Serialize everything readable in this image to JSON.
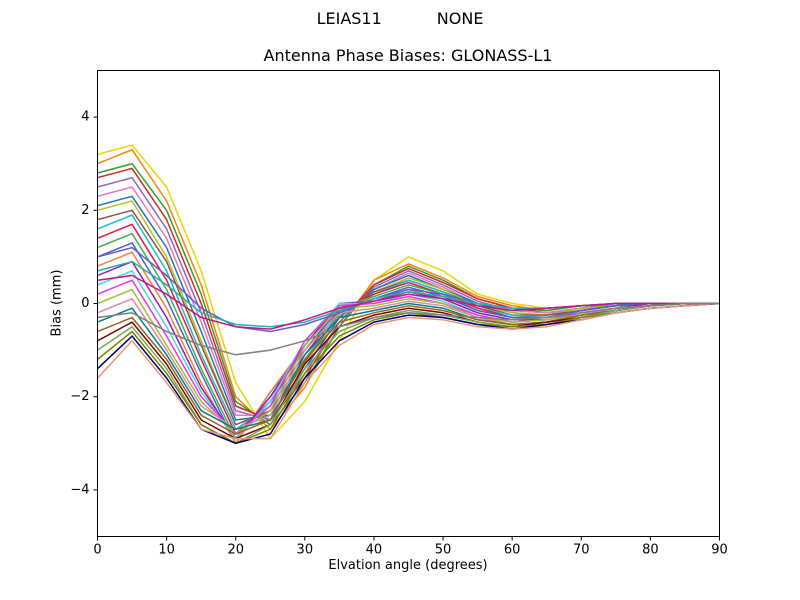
{
  "chart_data": {
    "type": "line",
    "suptitle_left": "LEIAS11",
    "suptitle_right": "NONE",
    "title": "Antenna Phase Biases: GLONASS-L1",
    "xlabel": "Elvation angle (degrees)",
    "ylabel": "Bias (mm)",
    "xlim": [
      0,
      90
    ],
    "ylim": [
      -5,
      5
    ],
    "xticks": [
      0,
      10,
      20,
      30,
      40,
      50,
      60,
      70,
      80,
      90
    ],
    "yticks": [
      -4,
      -2,
      0,
      2,
      4
    ],
    "grid": false,
    "legend": "none",
    "x": [
      0,
      5,
      10,
      15,
      20,
      25,
      30,
      35,
      40,
      45,
      50,
      55,
      60,
      65,
      70,
      75,
      80,
      85,
      90
    ],
    "series": [
      {
        "color": "#e6d800",
        "values": [
          3.2,
          3.4,
          2.5,
          0.7,
          -1.7,
          -2.9,
          -2.1,
          -0.8,
          0.5,
          1.0,
          0.7,
          0.2,
          0.0,
          -0.1,
          -0.05,
          0,
          0,
          0,
          0
        ]
      },
      {
        "color": "#ff7f0e",
        "values": [
          3.0,
          3.3,
          2.2,
          0.4,
          -2.0,
          -2.7,
          -1.8,
          -0.5,
          0.5,
          0.85,
          0.55,
          0.15,
          -0.05,
          -0.15,
          -0.05,
          0,
          0,
          0,
          0
        ]
      },
      {
        "color": "#2ca02c",
        "values": [
          2.8,
          3.0,
          2.0,
          0.2,
          -2.1,
          -2.6,
          -1.7,
          -0.5,
          0.4,
          0.8,
          0.5,
          0.1,
          -0.1,
          -0.15,
          -0.05,
          0,
          0,
          0,
          0
        ]
      },
      {
        "color": "#d62728",
        "values": [
          2.7,
          2.9,
          1.8,
          0.0,
          -2.2,
          -2.5,
          -1.6,
          -0.4,
          0.4,
          0.75,
          0.45,
          0.1,
          -0.1,
          -0.2,
          -0.1,
          0,
          0,
          0,
          0
        ]
      },
      {
        "color": "#9467bd",
        "values": [
          2.5,
          2.7,
          1.6,
          -0.2,
          -2.3,
          -2.5,
          -1.5,
          -0.4,
          0.35,
          0.7,
          0.4,
          0.05,
          -0.15,
          -0.2,
          -0.1,
          0,
          0,
          0,
          0
        ]
      },
      {
        "color": "#e377c2",
        "values": [
          2.3,
          2.5,
          1.4,
          -0.4,
          -2.4,
          -2.4,
          -1.4,
          -0.3,
          0.3,
          0.65,
          0.35,
          0.0,
          -0.15,
          -0.2,
          -0.1,
          -0.05,
          0,
          0,
          0
        ]
      },
      {
        "color": "#1f77b4",
        "values": [
          2.1,
          2.3,
          1.2,
          -0.6,
          -2.5,
          -2.4,
          -1.4,
          -0.3,
          0.3,
          0.6,
          0.3,
          0.0,
          -0.2,
          -0.25,
          -0.1,
          -0.05,
          0,
          0,
          0
        ]
      },
      {
        "color": "#bcbd22",
        "values": [
          2.0,
          2.2,
          1.0,
          -0.8,
          -2.6,
          -2.3,
          -1.3,
          -0.25,
          0.25,
          0.55,
          0.3,
          -0.05,
          -0.2,
          -0.25,
          -0.1,
          -0.05,
          0,
          0,
          0
        ]
      },
      {
        "color": "#8c564b",
        "values": [
          1.8,
          2.0,
          0.9,
          -0.9,
          -2.6,
          -2.3,
          -1.25,
          -0.2,
          0.25,
          0.5,
          0.25,
          -0.05,
          -0.25,
          -0.25,
          -0.15,
          -0.05,
          0,
          0,
          0
        ]
      },
      {
        "color": "#17becf",
        "values": [
          1.6,
          1.9,
          0.7,
          -1.1,
          -2.7,
          -2.2,
          -1.2,
          -0.2,
          0.2,
          0.5,
          0.25,
          -0.1,
          -0.25,
          -0.3,
          -0.15,
          -0.05,
          0,
          0,
          0
        ]
      },
      {
        "color": "#e6194b",
        "values": [
          1.4,
          1.7,
          0.5,
          -1.2,
          -2.8,
          -2.1,
          -1.1,
          -0.15,
          0.2,
          0.45,
          0.2,
          -0.1,
          -0.3,
          -0.3,
          -0.15,
          -0.05,
          0,
          0,
          0
        ]
      },
      {
        "color": "#3cb44b",
        "values": [
          1.2,
          1.5,
          0.3,
          -1.4,
          -2.9,
          -2.0,
          -1.0,
          -0.1,
          0.15,
          0.4,
          0.2,
          -0.15,
          -0.3,
          -0.3,
          -0.15,
          -0.05,
          0,
          0,
          0
        ]
      },
      {
        "color": "#4363d8",
        "values": [
          1.0,
          1.3,
          0.1,
          -1.5,
          -3.0,
          -1.9,
          -1.0,
          -0.1,
          0.1,
          0.35,
          0.15,
          -0.15,
          -0.3,
          -0.3,
          -0.15,
          -0.05,
          0,
          0,
          0
        ]
      },
      {
        "color": "#f58231",
        "values": [
          0.8,
          1.1,
          -0.1,
          -1.7,
          -3.0,
          -1.9,
          -0.9,
          -0.05,
          0.1,
          0.3,
          0.1,
          -0.2,
          -0.35,
          -0.3,
          -0.2,
          -0.1,
          0,
          0,
          0
        ]
      },
      {
        "color": "#911eb4",
        "values": [
          0.6,
          0.9,
          -0.3,
          -1.8,
          -2.9,
          -2.0,
          -0.9,
          0.0,
          0.05,
          0.25,
          0.1,
          -0.2,
          -0.35,
          -0.35,
          -0.2,
          -0.1,
          0,
          0,
          0
        ]
      },
      {
        "color": "#46d4f0",
        "values": [
          0.4,
          0.7,
          -0.5,
          -1.9,
          -2.9,
          -2.1,
          -0.8,
          0.0,
          0.0,
          0.2,
          0.05,
          -0.25,
          -0.4,
          -0.35,
          -0.2,
          -0.1,
          -0.05,
          0,
          0
        ]
      },
      {
        "color": "#f032e6",
        "values": [
          0.2,
          0.5,
          -0.7,
          -2.0,
          -2.8,
          -2.2,
          -0.8,
          -0.05,
          0.0,
          0.15,
          0.0,
          -0.25,
          -0.4,
          -0.35,
          -0.2,
          -0.1,
          -0.05,
          0,
          0
        ]
      },
      {
        "color": "#9fbf30",
        "values": [
          0.0,
          0.3,
          -0.9,
          -2.1,
          -2.8,
          -2.3,
          -0.9,
          -0.1,
          -0.05,
          0.1,
          0.0,
          -0.3,
          -0.4,
          -0.35,
          -0.25,
          -0.1,
          -0.05,
          0,
          0
        ]
      },
      {
        "color": "#d98aae",
        "values": [
          -0.2,
          0.1,
          -1.0,
          -2.2,
          -2.7,
          -2.4,
          -1.0,
          -0.2,
          -0.1,
          0.05,
          -0.05,
          -0.3,
          -0.45,
          -0.4,
          -0.25,
          -0.1,
          -0.05,
          0,
          0
        ]
      },
      {
        "color": "#008080",
        "values": [
          -0.4,
          -0.1,
          -1.1,
          -2.3,
          -2.7,
          -2.5,
          -1.1,
          -0.3,
          -0.15,
          0.0,
          -0.1,
          -0.35,
          -0.45,
          -0.4,
          -0.25,
          -0.15,
          -0.05,
          0,
          0
        ]
      },
      {
        "color": "#9a6324",
        "values": [
          -0.6,
          -0.3,
          -1.2,
          -2.4,
          -2.8,
          -2.5,
          -1.2,
          -0.4,
          -0.2,
          -0.05,
          -0.15,
          -0.35,
          -0.45,
          -0.4,
          -0.25,
          -0.15,
          -0.05,
          0,
          0
        ]
      },
      {
        "color": "#800000",
        "values": [
          -0.8,
          -0.4,
          -1.3,
          -2.5,
          -2.9,
          -2.6,
          -1.3,
          -0.5,
          -0.25,
          -0.1,
          -0.2,
          -0.4,
          -0.5,
          -0.4,
          -0.3,
          -0.15,
          -0.05,
          0,
          0
        ]
      },
      {
        "color": "#6aaf5c",
        "values": [
          -1.0,
          -0.5,
          -1.4,
          -2.6,
          -3.0,
          -2.6,
          -1.4,
          -0.6,
          -0.3,
          -0.15,
          -0.25,
          -0.4,
          -0.5,
          -0.45,
          -0.3,
          -0.15,
          -0.05,
          0,
          0
        ]
      },
      {
        "color": "#808000",
        "values": [
          -1.2,
          -0.6,
          -1.5,
          -2.6,
          -3.0,
          -2.7,
          -1.5,
          -0.7,
          -0.35,
          -0.2,
          -0.3,
          -0.45,
          -0.5,
          -0.45,
          -0.3,
          -0.2,
          -0.1,
          -0.05,
          0
        ]
      },
      {
        "color": "#000075",
        "values": [
          -1.4,
          -0.7,
          -1.6,
          -2.7,
          -3.0,
          -2.8,
          -1.6,
          -0.8,
          -0.4,
          -0.25,
          -0.3,
          -0.45,
          -0.55,
          -0.45,
          -0.35,
          -0.2,
          -0.1,
          -0.05,
          0
        ]
      },
      {
        "color": "#e9967a",
        "values": [
          -1.6,
          -0.8,
          -1.7,
          -2.7,
          -2.9,
          -2.9,
          -1.7,
          -0.9,
          -0.45,
          -0.3,
          -0.35,
          -0.5,
          -0.55,
          -0.5,
          -0.35,
          -0.2,
          -0.1,
          -0.05,
          0
        ]
      },
      {
        "color": "#6a5acd",
        "values": [
          1.0,
          1.2,
          0.6,
          -0.1,
          -0.5,
          -0.6,
          -0.45,
          -0.2,
          0.1,
          0.3,
          0.2,
          0.0,
          -0.1,
          -0.1,
          -0.05,
          0,
          0,
          0,
          0
        ]
      },
      {
        "color": "#20b2aa",
        "values": [
          0.7,
          0.9,
          0.4,
          -0.2,
          -0.45,
          -0.5,
          -0.4,
          -0.15,
          0.1,
          0.25,
          0.15,
          0.0,
          -0.1,
          -0.1,
          -0.05,
          0,
          0,
          0,
          0
        ]
      },
      {
        "color": "#c71585",
        "values": [
          0.5,
          0.6,
          0.2,
          -0.3,
          -0.5,
          -0.55,
          -0.35,
          -0.1,
          0.05,
          0.2,
          0.1,
          -0.05,
          -0.15,
          -0.1,
          -0.05,
          0,
          0,
          0,
          0
        ]
      },
      {
        "color": "#7f7f7f",
        "values": [
          -0.3,
          -0.2,
          -0.6,
          -0.9,
          -1.1,
          -1.0,
          -0.8,
          -0.5,
          -0.3,
          -0.2,
          -0.25,
          -0.3,
          -0.35,
          -0.3,
          -0.2,
          -0.1,
          -0.05,
          0,
          0
        ]
      }
    ]
  }
}
